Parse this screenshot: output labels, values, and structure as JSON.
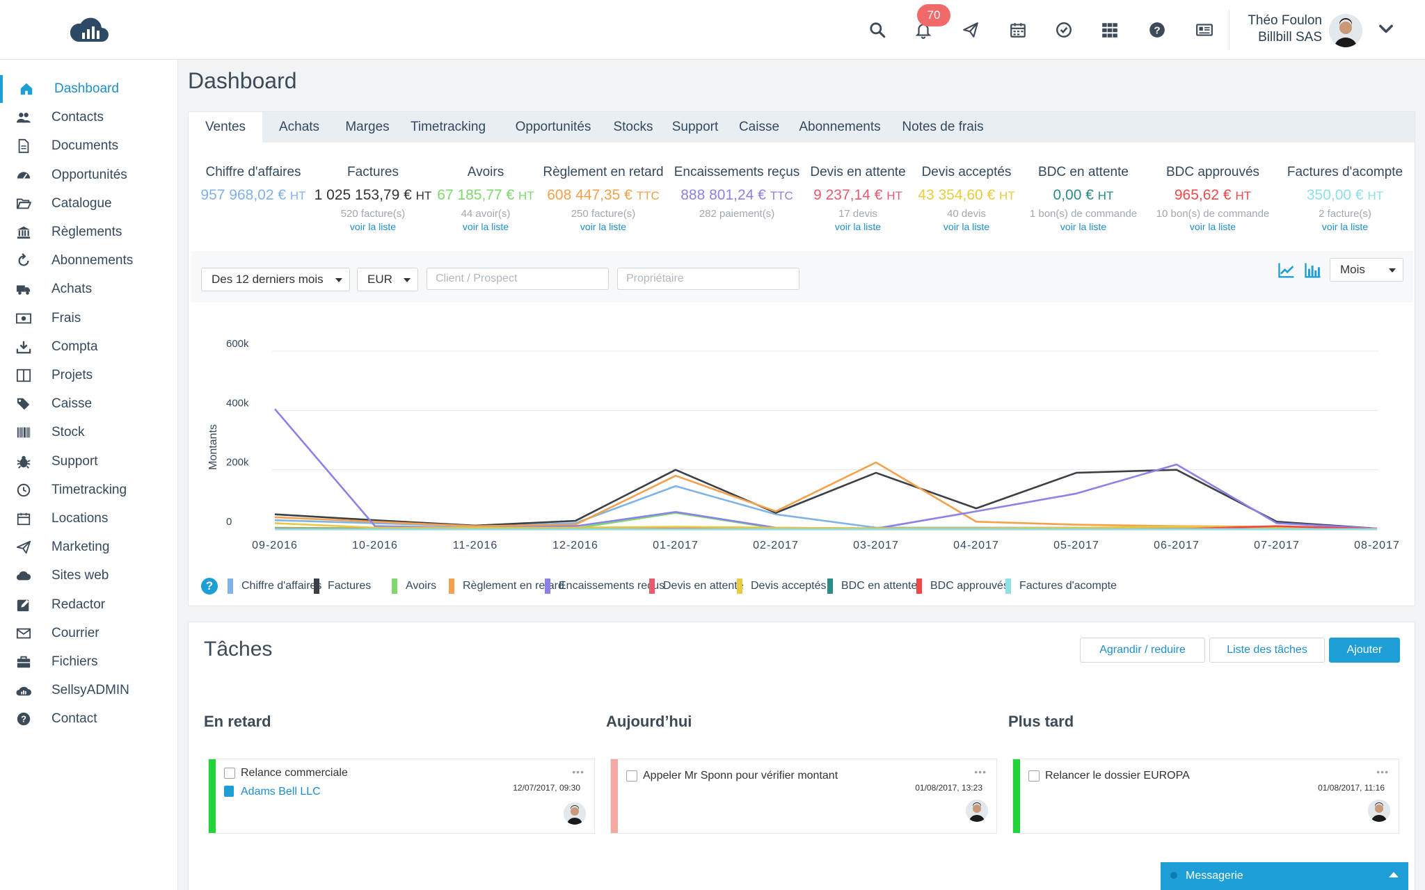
{
  "colors": {
    "accent": "#1d9fd6",
    "link": "#1d8ecc",
    "badge": "#f06a6a"
  },
  "topbar": {
    "notifications_count": "70",
    "icons": [
      "search-icon",
      "bell-icon",
      "paper-plane-icon",
      "calendar-icon",
      "check-circle-icon",
      "grid-icon",
      "help-icon",
      "news-icon"
    ],
    "user_name": "Théo Foulon",
    "user_company": "Billbill SAS"
  },
  "sidebar": {
    "items": [
      {
        "label": "Dashboard",
        "icon": "home-icon",
        "active": true
      },
      {
        "label": "Contacts",
        "icon": "users-icon"
      },
      {
        "label": "Documents",
        "icon": "document-icon"
      },
      {
        "label": "Opportunités",
        "icon": "dashboard-gauge-icon"
      },
      {
        "label": "Catalogue",
        "icon": "folder-open-icon"
      },
      {
        "label": "Règlements",
        "icon": "bank-icon"
      },
      {
        "label": "Abonnements",
        "icon": "refresh-icon"
      },
      {
        "label": "Achats",
        "icon": "truck-icon"
      },
      {
        "label": "Frais",
        "icon": "money-icon"
      },
      {
        "label": "Compta",
        "icon": "download-icon"
      },
      {
        "label": "Projets",
        "icon": "columns-icon"
      },
      {
        "label": "Caisse",
        "icon": "tags-icon"
      },
      {
        "label": "Stock",
        "icon": "barcode-icon"
      },
      {
        "label": "Support",
        "icon": "bug-icon"
      },
      {
        "label": "Timetracking",
        "icon": "clock-icon"
      },
      {
        "label": "Locations",
        "icon": "calendar-icon"
      },
      {
        "label": "Marketing",
        "icon": "paper-plane-icon"
      },
      {
        "label": "Sites web",
        "icon": "cloud-icon"
      },
      {
        "label": "Redactor",
        "icon": "edit-icon"
      },
      {
        "label": "Courrier",
        "icon": "envelope-icon"
      },
      {
        "label": "Fichiers",
        "icon": "briefcase-icon"
      },
      {
        "label": "SellsyADMIN",
        "icon": "cloud-chart-icon"
      },
      {
        "label": "Contact",
        "icon": "question-icon"
      }
    ]
  },
  "page": {
    "title": "Dashboard"
  },
  "tabs": [
    {
      "label": "Ventes",
      "active": true
    },
    {
      "label": "Achats"
    },
    {
      "label": "Marges"
    },
    {
      "label": "Timetracking"
    },
    {
      "label": "Opportunités"
    },
    {
      "label": "Stocks"
    },
    {
      "label": "Support"
    },
    {
      "label": "Caisse"
    },
    {
      "label": "Abonnements"
    },
    {
      "label": "Notes de frais"
    }
  ],
  "kpis": [
    {
      "title": "Chiffre d'affaires",
      "value": "957 968,02 €",
      "unit": "HT",
      "color": "#7fb3e8",
      "sub": "",
      "link": ""
    },
    {
      "title": "Factures",
      "value": "1 025 153,79 €",
      "unit": "HT",
      "color": "#333333",
      "sub": "520 facture(s)",
      "link": "voir la liste"
    },
    {
      "title": "Avoirs",
      "value": "67 185,77 €",
      "unit": "HT",
      "color": "#7ed86e",
      "sub": "44 avoir(s)",
      "link": "voir la liste"
    },
    {
      "title": "Règlement en retard",
      "value": "608 447,35 €",
      "unit": "TTC",
      "color": "#f5a04a",
      "sub": "250 facture(s)",
      "link": "voir la liste"
    },
    {
      "title": "Encaissements reçus",
      "value": "888 801,24 €",
      "unit": "TTC",
      "color": "#8a82e8",
      "sub": "282 paiement(s)",
      "link": ""
    },
    {
      "title": "Devis en attente",
      "value": "9 237,14 €",
      "unit": "HT",
      "color": "#ea5a6e",
      "sub": "17 devis",
      "link": "voir la liste"
    },
    {
      "title": "Devis acceptés",
      "value": "43 354,60 €",
      "unit": "HT",
      "color": "#e6cc3e",
      "sub": "40 devis",
      "link": "voir la liste"
    },
    {
      "title": "BDC en attente",
      "value": "0,00 €",
      "unit": "HT",
      "color": "#2a8a84",
      "sub": "1 bon(s) de commande",
      "link": "voir la liste"
    },
    {
      "title": "BDC approuvés",
      "value": "965,62 €",
      "unit": "HT",
      "color": "#f04848",
      "sub": "10 bon(s) de commande",
      "link": "voir la liste"
    },
    {
      "title": "Factures d'acompte",
      "value": "350,00 €",
      "unit": "HT",
      "color": "#8de0e4",
      "sub": "2 facture(s)",
      "link": "voir la liste"
    }
  ],
  "filters": {
    "period": "Des 12 derniers mois",
    "currency": "EUR",
    "client_placeholder": "Client / Prospect",
    "owner_placeholder": "Propriétaire",
    "granularity": "Mois",
    "chart_type_icons": [
      "line-chart-icon",
      "bar-chart-icon"
    ]
  },
  "chart_data": {
    "type": "line",
    "ylabel": "Montants",
    "xlabel": "",
    "ylim": [
      0,
      600000
    ],
    "yticks": [
      "0",
      "200k",
      "400k",
      "600k"
    ],
    "categories": [
      "09-2016",
      "10-2016",
      "11-2016",
      "12-2016",
      "01-2017",
      "02-2017",
      "03-2017",
      "04-2017",
      "05-2017",
      "06-2017",
      "07-2017",
      "08-2017"
    ],
    "grid": true,
    "legend_position": "bottom",
    "series": [
      {
        "name": "Chiffre d'affaires",
        "color": "#7fb3e8",
        "values": [
          30000,
          20000,
          10000,
          20000,
          145000,
          50000,
          5000,
          5000,
          5000,
          5000,
          5000,
          2000
        ]
      },
      {
        "name": "Factures",
        "color": "#3b3f46",
        "values": [
          50000,
          30000,
          12000,
          28000,
          200000,
          55000,
          190000,
          70000,
          190000,
          200000,
          25000,
          2000
        ]
      },
      {
        "name": "Avoirs",
        "color": "#7ed86e",
        "values": [
          5000,
          3000,
          2000,
          3000,
          55000,
          3000,
          2000,
          2000,
          2000,
          2000,
          2000,
          1000
        ]
      },
      {
        "name": "Règlement en retard",
        "color": "#f5a04a",
        "values": [
          40000,
          25000,
          10000,
          15000,
          180000,
          60000,
          225000,
          25000,
          15000,
          10000,
          8000,
          2000
        ]
      },
      {
        "name": "Encaissements reçus",
        "color": "#8a82e8",
        "values": [
          405000,
          10000,
          5000,
          10000,
          58000,
          5000,
          2000,
          60000,
          120000,
          218000,
          20000,
          2000
        ]
      },
      {
        "name": "Devis en attente",
        "color": "#ea5a6e",
        "values": [
          2000,
          1000,
          1000,
          1000,
          2000,
          1000,
          1000,
          1000,
          1000,
          1000,
          1000,
          500
        ]
      },
      {
        "name": "Devis acceptés",
        "color": "#e6cc3e",
        "values": [
          20000,
          5000,
          5000,
          5000,
          8000,
          5000,
          3000,
          3000,
          5000,
          8000,
          5000,
          1000
        ]
      },
      {
        "name": "BDC en attente",
        "color": "#2a8a84",
        "values": [
          0,
          0,
          0,
          0,
          0,
          0,
          0,
          0,
          0,
          0,
          0,
          0
        ]
      },
      {
        "name": "BDC approuvés",
        "color": "#f04848",
        "values": [
          0,
          0,
          0,
          0,
          0,
          0,
          0,
          0,
          0,
          0,
          10000,
          500
        ]
      },
      {
        "name": "Factures d'acompte",
        "color": "#8de0e4",
        "values": [
          0,
          0,
          0,
          0,
          0,
          0,
          0,
          0,
          0,
          0,
          0,
          0
        ]
      }
    ]
  },
  "tasks": {
    "title": "Tâches",
    "buttons": {
      "expand": "Agrandir / reduire",
      "list": "Liste des tâches",
      "add": "Ajouter"
    },
    "columns": [
      {
        "title": "En retard",
        "cards": [
          {
            "text": "Relance commerciale",
            "link": "Adams Bell LLC",
            "date": "12/07/2017, 09:30",
            "bar_color": "#22d33a"
          }
        ]
      },
      {
        "title": "Aujourd’hui",
        "cards": [
          {
            "text": "Appeler Mr Sponn pour vérifier montant",
            "link": "",
            "date": "01/08/2017, 13:23",
            "bar_color": "#f5a8a0"
          }
        ]
      },
      {
        "title": "Plus tard",
        "cards": [
          {
            "text": "Relancer le dossier EUROPA",
            "link": "",
            "date": "01/08/2017, 11:16",
            "bar_color": "#22d33a"
          }
        ]
      }
    ]
  },
  "messagerie": {
    "label": "Messagerie"
  }
}
